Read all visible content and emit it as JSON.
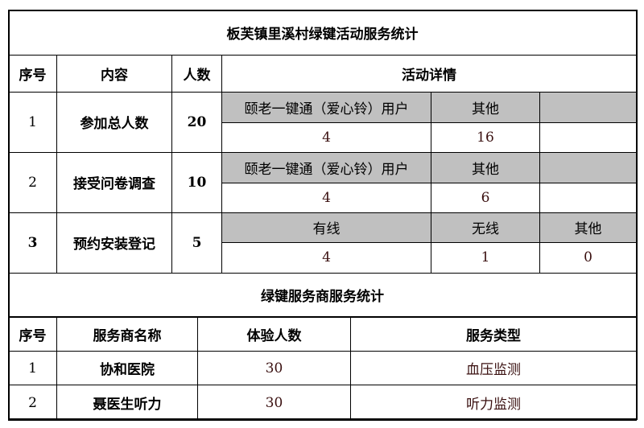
{
  "title": "板芙镇里溪村绿键活动服务统计",
  "headers": {
    "index": "序号",
    "content": "内容",
    "count": "人数",
    "details": "活动详情"
  },
  "rows": [
    {
      "index": "1",
      "content": "参加总人数",
      "count": "20",
      "detail_labels": [
        "颐老一键通（爱心铃）用户",
        "其他",
        ""
      ],
      "detail_values": [
        "4",
        "16",
        ""
      ]
    },
    {
      "index": "2",
      "content": "接受问卷调查",
      "count": "10",
      "detail_labels": [
        "颐老一键通（爱心铃）用户",
        "其他",
        ""
      ],
      "detail_values": [
        "4",
        "6",
        ""
      ]
    },
    {
      "index": "3",
      "content": "预约安装登记",
      "count": "5",
      "detail_labels": [
        "有线",
        "无线",
        "其他"
      ],
      "detail_values": [
        "4",
        "1",
        "0"
      ]
    }
  ],
  "section2": {
    "title": "绿键服务商服务统计",
    "headers": {
      "index": "序号",
      "name": "服务商名称",
      "count": "体验人数",
      "type": "服务类型"
    },
    "rows": [
      {
        "index": "1",
        "name": "协和医院",
        "count": "30",
        "type": "血压监测"
      },
      {
        "index": "2",
        "name": "聂医生听力",
        "count": "30",
        "type": "听力监测"
      }
    ]
  },
  "colors": {
    "label_cell_bg": "#c0c0c0",
    "border": "#000000"
  }
}
